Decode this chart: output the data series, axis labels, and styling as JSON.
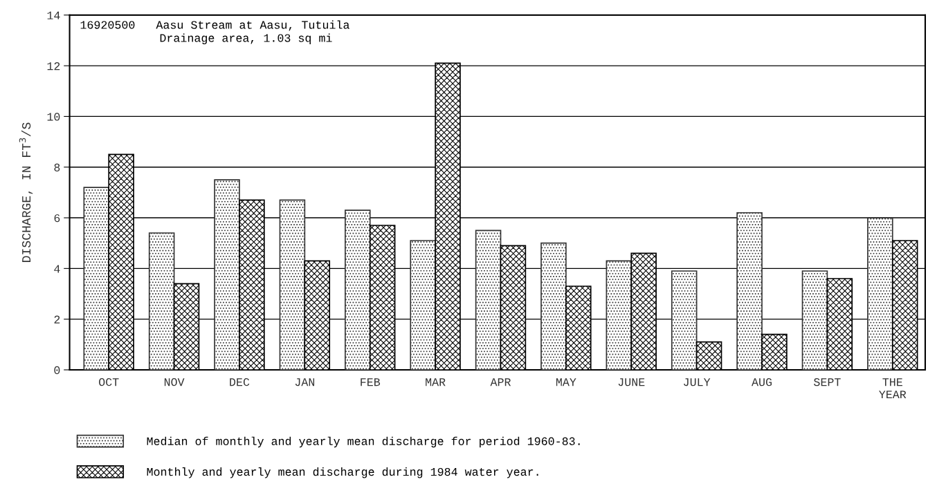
{
  "chart_data": {
    "type": "bar",
    "title": "16920500   Aasu Stream at Aasu, Tutuila",
    "subtitle": "Drainage area, 1.03 sq mi",
    "ylabel": "DISCHARGE, IN FT$^{3}$/S",
    "categories": [
      "OCT",
      "NOV",
      "DEC",
      "JAN",
      "FEB",
      "MAR",
      "APR",
      "MAY",
      "JUNE",
      "JULY",
      "AUG",
      "SEPT",
      "THE\nYEAR"
    ],
    "series": [
      {
        "name": "Median of monthly and yearly mean discharge for period 1960-83.",
        "color": "#333333",
        "values": [
          7.2,
          5.4,
          7.5,
          6.7,
          6.3,
          5.1,
          5.5,
          5.0,
          4.3,
          3.9,
          6.2,
          3.9,
          6.0
        ]
      },
      {
        "name": "Monthly and yearly mean discharge during 1984 water year.",
        "color": "#000000",
        "values": [
          8.5,
          3.4,
          6.7,
          4.3,
          5.7,
          12.1,
          4.9,
          3.3,
          4.6,
          1.1,
          1.4,
          3.6,
          5.1
        ]
      }
    ],
    "ylim": [
      0,
      14
    ],
    "yticks": [
      0,
      2,
      4,
      6,
      8,
      10,
      12,
      14
    ],
    "grid": "y",
    "legend": "bottom"
  }
}
